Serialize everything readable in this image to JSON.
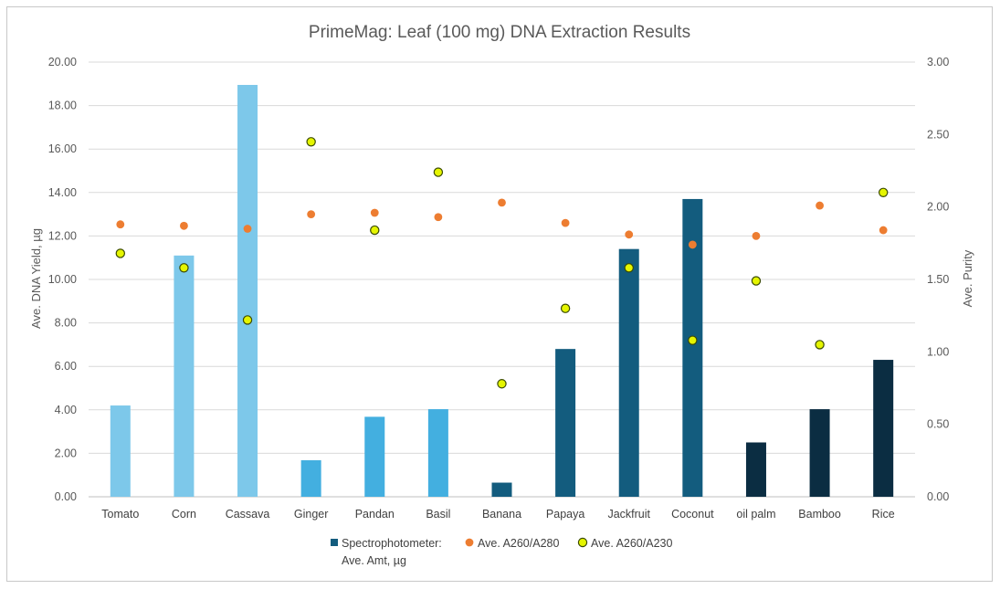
{
  "chart_data": {
    "type": "bar",
    "title": "PrimeMag: Leaf (100 mg) DNA Extraction Results",
    "ylabel": "Ave. DNA Yield, µg",
    "y2label": "Ave. Purity",
    "ylim": [
      0,
      20
    ],
    "y2lim": [
      0,
      3
    ],
    "yticks": [
      "0.00",
      "2.00",
      "4.00",
      "6.00",
      "8.00",
      "10.00",
      "12.00",
      "14.00",
      "16.00",
      "18.00",
      "20.00"
    ],
    "y2ticks": [
      "0.00",
      "0.50",
      "1.00",
      "1.50",
      "2.00",
      "2.50",
      "3.00"
    ],
    "grid": true,
    "legend_position": "bottom",
    "categories": [
      "Tomato",
      "Corn",
      "Cassava",
      "Ginger",
      "Pandan",
      "Basil",
      "Banana",
      "Papaya",
      "Jackfruit",
      "Coconut",
      "oil palm",
      "Bamboo",
      "Rice"
    ],
    "bar_colors": [
      "#7dc8ea",
      "#7dc8ea",
      "#7dc8ea",
      "#43afe0",
      "#43afe0",
      "#43afe0",
      "#135c7e",
      "#135c7e",
      "#135c7e",
      "#135c7e",
      "#0b2d42",
      "#0b2d42",
      "#0b2d42"
    ],
    "series": [
      {
        "name": "Spectrophotometer: Ave. Amt, µg",
        "legend_lines": [
          "Spectrophotometer:",
          "Ave. Amt, µg"
        ],
        "kind": "bar",
        "axis": "left",
        "color": "#135c7e",
        "values": [
          4.2,
          11.1,
          18.95,
          1.68,
          3.68,
          4.03,
          0.65,
          6.8,
          11.4,
          13.7,
          2.5,
          4.03,
          6.3
        ]
      },
      {
        "name": "Ave. A260/A280",
        "kind": "scatter",
        "axis": "right",
        "color": "#ed7d31",
        "values": [
          1.88,
          1.87,
          1.85,
          1.95,
          1.96,
          1.93,
          2.03,
          1.89,
          1.81,
          1.74,
          1.8,
          2.01,
          1.84
        ]
      },
      {
        "name": "Ave. A260/A230",
        "kind": "scatter",
        "axis": "right",
        "color": "#e5f500",
        "stroke": "#3a4a00",
        "values": [
          1.68,
          1.58,
          1.22,
          2.45,
          1.84,
          2.24,
          0.78,
          1.3,
          1.58,
          1.08,
          1.49,
          1.05,
          2.1
        ]
      }
    ]
  }
}
